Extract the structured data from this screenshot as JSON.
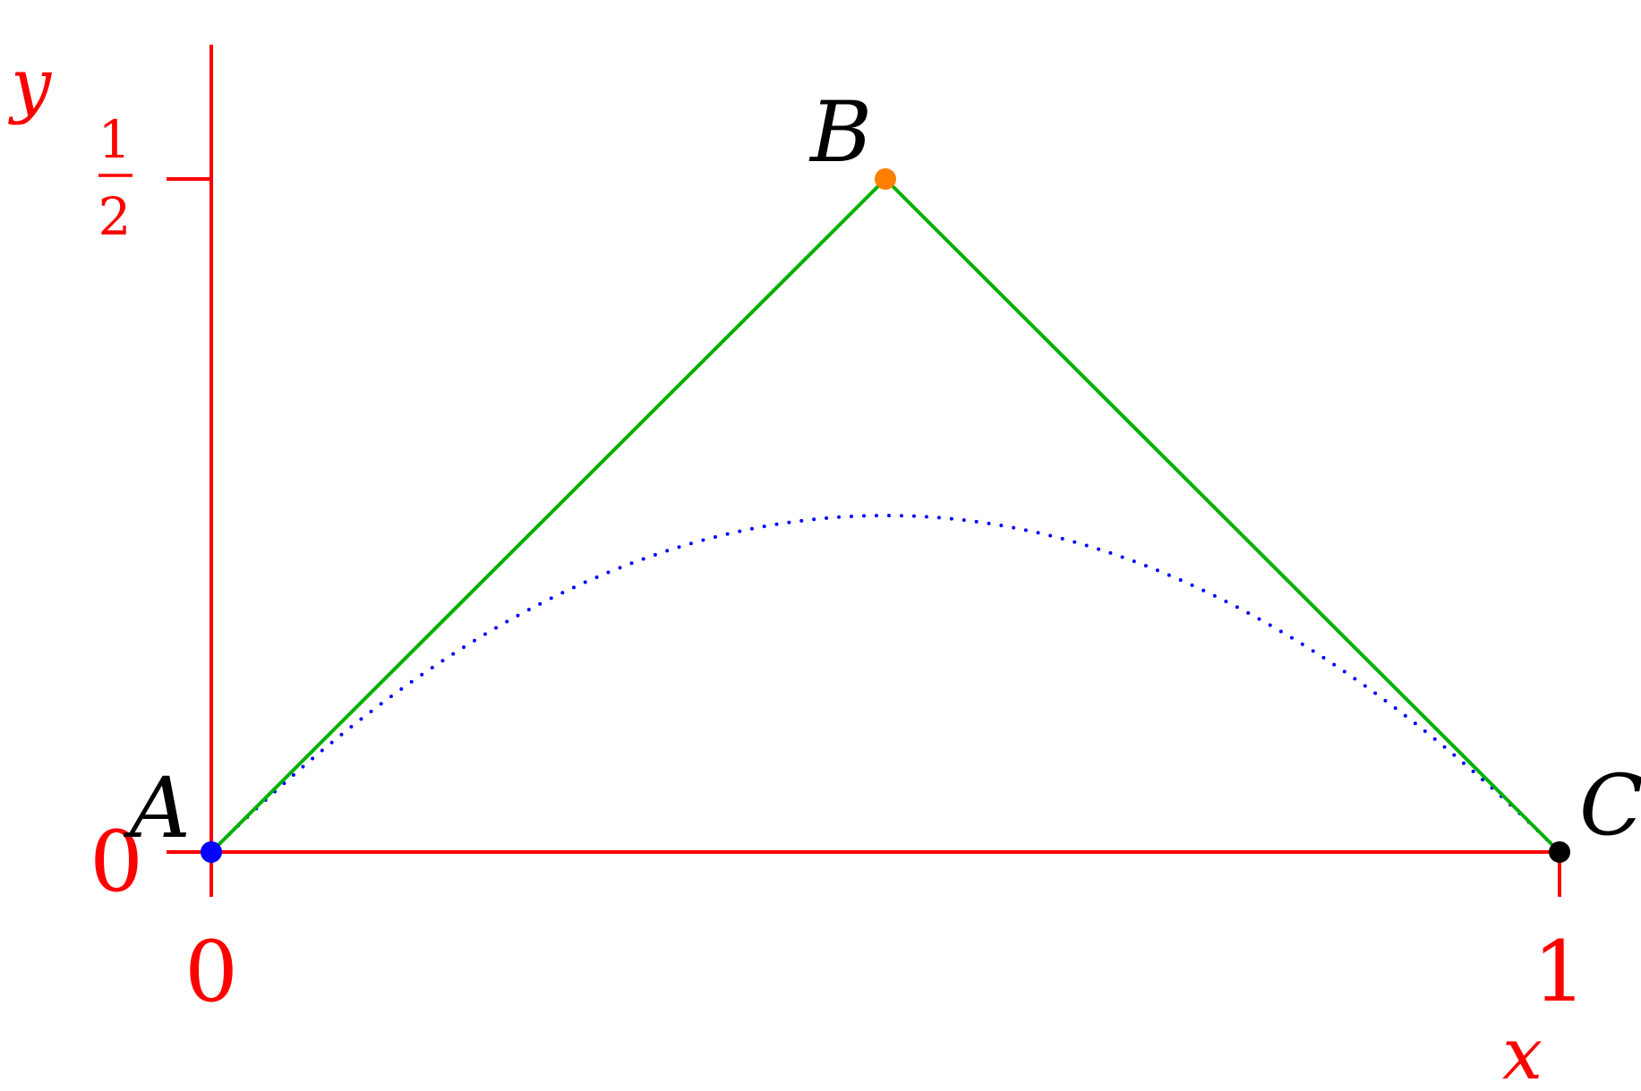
{
  "axes": {
    "x_label": "x",
    "y_label": "y",
    "x_ticks": [
      "0",
      "1"
    ],
    "y_tick_zero": "0",
    "y_tick_half": {
      "numerator": "1",
      "denominator": "2"
    },
    "color": "#ff0000"
  },
  "points": {
    "A": {
      "label": "A",
      "x": 0,
      "y": 0,
      "color": "#0000ff"
    },
    "B": {
      "label": "B",
      "x": 0.5,
      "y": 0.5,
      "color": "#ff8000"
    },
    "C": {
      "label": "C",
      "x": 1,
      "y": 0,
      "color": "#000000"
    }
  },
  "polyline_color": "#00b000",
  "curve": {
    "type": "parabola",
    "peak": [
      0.5,
      0.25
    ],
    "color": "#0000ff",
    "style": "dotted"
  }
}
